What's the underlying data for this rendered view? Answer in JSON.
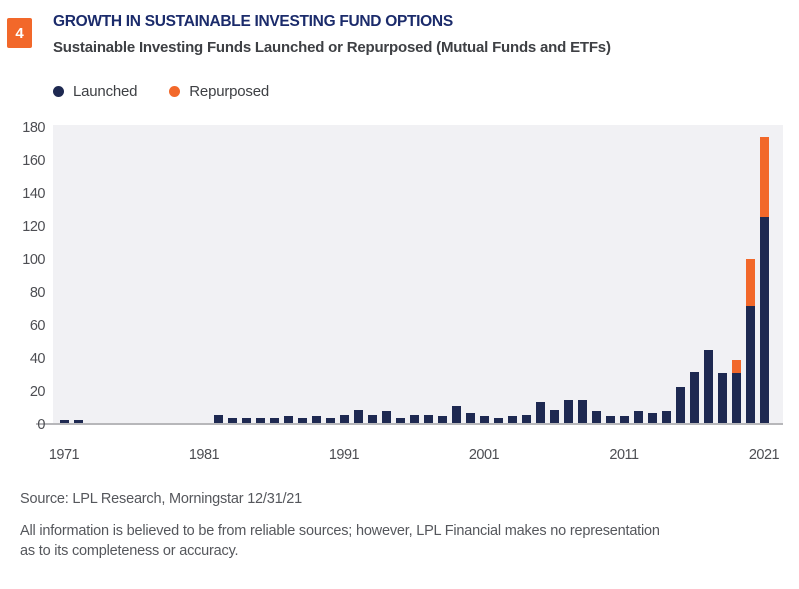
{
  "figure_number": "4",
  "header": {
    "title": "GROWTH IN SUSTAINABLE INVESTING FUND OPTIONS",
    "subtitle": "Sustainable Investing Funds Launched or Repurposed (Mutual Funds and ETFs)"
  },
  "legend": {
    "launched_label": "Launched",
    "repurposed_label": "Repurposed"
  },
  "colors": {
    "launched_navy": "#1E2951",
    "repurposed_orange": "#F2682A",
    "badge_orange": "#F2682A",
    "title_navy": "#1B2B6B",
    "plot_background": "#F1F1F4",
    "axis_line_gray": "#B7B7BA"
  },
  "chart_data": {
    "type": "bar",
    "stacked": true,
    "title": "Sustainable Investing Funds Launched or Repurposed (Mutual Funds and ETFs)",
    "xlabel": "",
    "ylabel": "",
    "ylim": [
      0,
      180
    ],
    "y_ticks": [
      0,
      20,
      40,
      60,
      80,
      100,
      120,
      140,
      160,
      180
    ],
    "x_tick_labels": [
      "1971",
      "1981",
      "1991",
      "2001",
      "2011",
      "2021"
    ],
    "grid": false,
    "legend_position": "top-left",
    "x": [
      1971,
      1972,
      1973,
      1974,
      1975,
      1976,
      1977,
      1978,
      1979,
      1980,
      1981,
      1982,
      1983,
      1984,
      1985,
      1986,
      1987,
      1988,
      1989,
      1990,
      1991,
      1992,
      1993,
      1994,
      1995,
      1996,
      1997,
      1998,
      1999,
      2000,
      2001,
      2002,
      2003,
      2004,
      2005,
      2006,
      2007,
      2008,
      2009,
      2010,
      2011,
      2012,
      2013,
      2014,
      2015,
      2016,
      2017,
      2018,
      2019,
      2020,
      2021
    ],
    "series": [
      {
        "name": "Launched",
        "values": [
          2,
          2,
          0,
          0,
          0,
          0,
          0,
          0,
          0,
          0,
          0,
          5,
          3,
          3,
          3,
          3,
          4,
          3,
          4,
          3,
          5,
          8,
          5,
          7,
          3,
          5,
          5,
          4,
          10,
          6,
          4,
          3,
          4,
          5,
          13,
          8,
          14,
          14,
          7,
          4,
          4,
          7,
          6,
          7,
          22,
          31,
          44,
          30,
          30,
          71,
          125
        ]
      },
      {
        "name": "Repurposed",
        "values": [
          0,
          0,
          0,
          0,
          0,
          0,
          0,
          0,
          0,
          0,
          0,
          0,
          0,
          0,
          0,
          0,
          0,
          0,
          0,
          0,
          0,
          0,
          0,
          0,
          0,
          0,
          0,
          0,
          0,
          0,
          0,
          0,
          0,
          0,
          0,
          0,
          0,
          0,
          0,
          0,
          0,
          0,
          0,
          0,
          0,
          0,
          0,
          0,
          8,
          28,
          48
        ]
      }
    ]
  },
  "footer": {
    "source": "Source: LPL Research, Morningstar  12/31/21",
    "disclaimer_lines": [
      "All information is believed to be from reliable sources; however, LPL Financial makes no representation",
      "as to its completeness or accuracy."
    ]
  }
}
